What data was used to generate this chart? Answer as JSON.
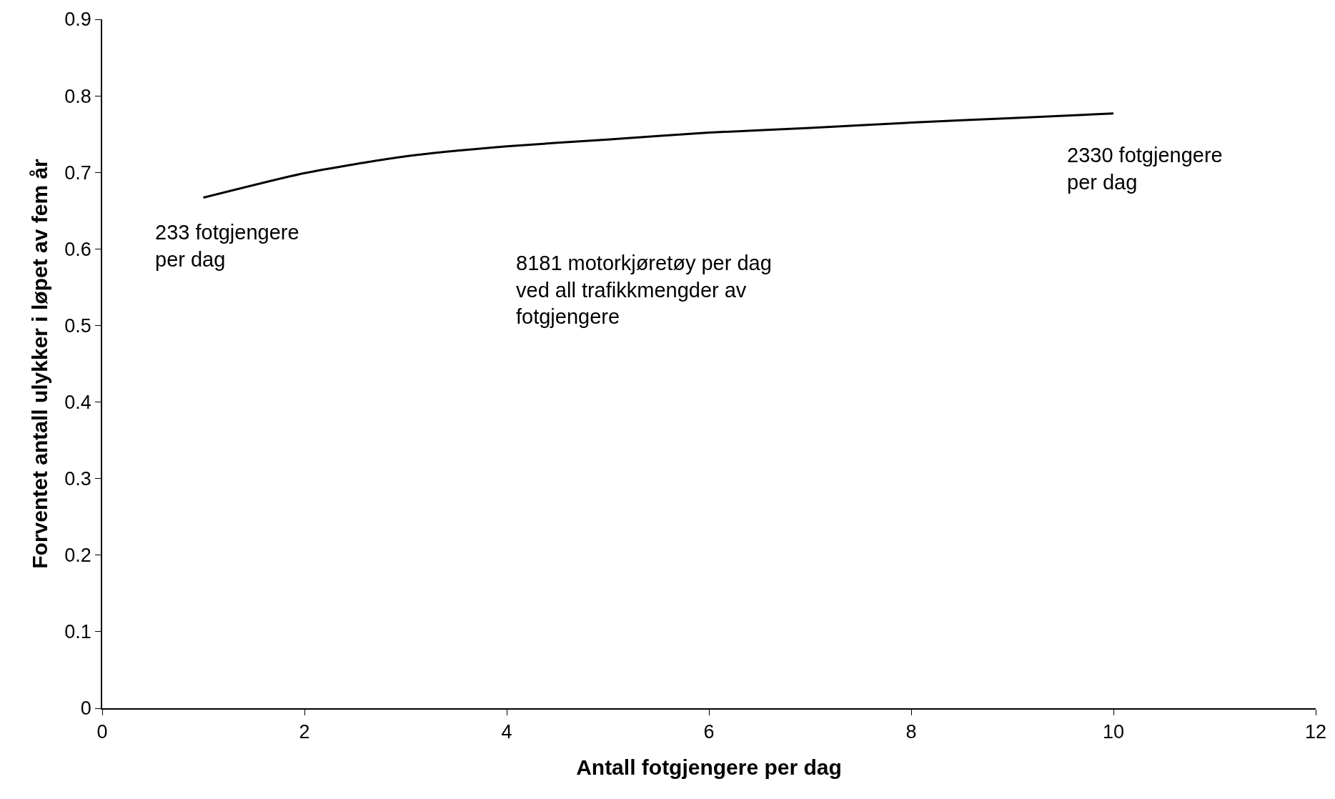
{
  "chart_data": {
    "type": "line",
    "xlabel": "Antall fotgjengere per dag",
    "ylabel": "Forventet antall ulykker i løpet av fem år",
    "x": [
      1,
      2,
      3,
      4,
      5,
      6,
      7,
      8,
      9,
      10
    ],
    "series": [
      {
        "color": "#000000",
        "values": [
          0.667,
          0.699,
          0.721,
          0.734,
          0.743,
          0.752,
          0.758,
          0.765,
          0.771,
          0.777
        ]
      }
    ],
    "xlim": [
      0,
      12
    ],
    "xticks": [
      0,
      2,
      4,
      6,
      8,
      10,
      12
    ],
    "ylim": [
      0,
      0.9
    ],
    "yticks": [
      0,
      0.1,
      0.2,
      0.3,
      0.4,
      0.5,
      0.6,
      0.7,
      0.8,
      0.9
    ],
    "marker": "none",
    "line_style": "solid",
    "annotations": [
      {
        "text": "233 fotgjengere\nper dag",
        "x": 1,
        "y": 0.667
      },
      {
        "text": "2330 fotgjengere\nper dag",
        "x": 10,
        "y": 0.777
      },
      "8181 motorkjøretøy per dag\nved all trafikkmengder av\nfotgjengere"
    ]
  }
}
